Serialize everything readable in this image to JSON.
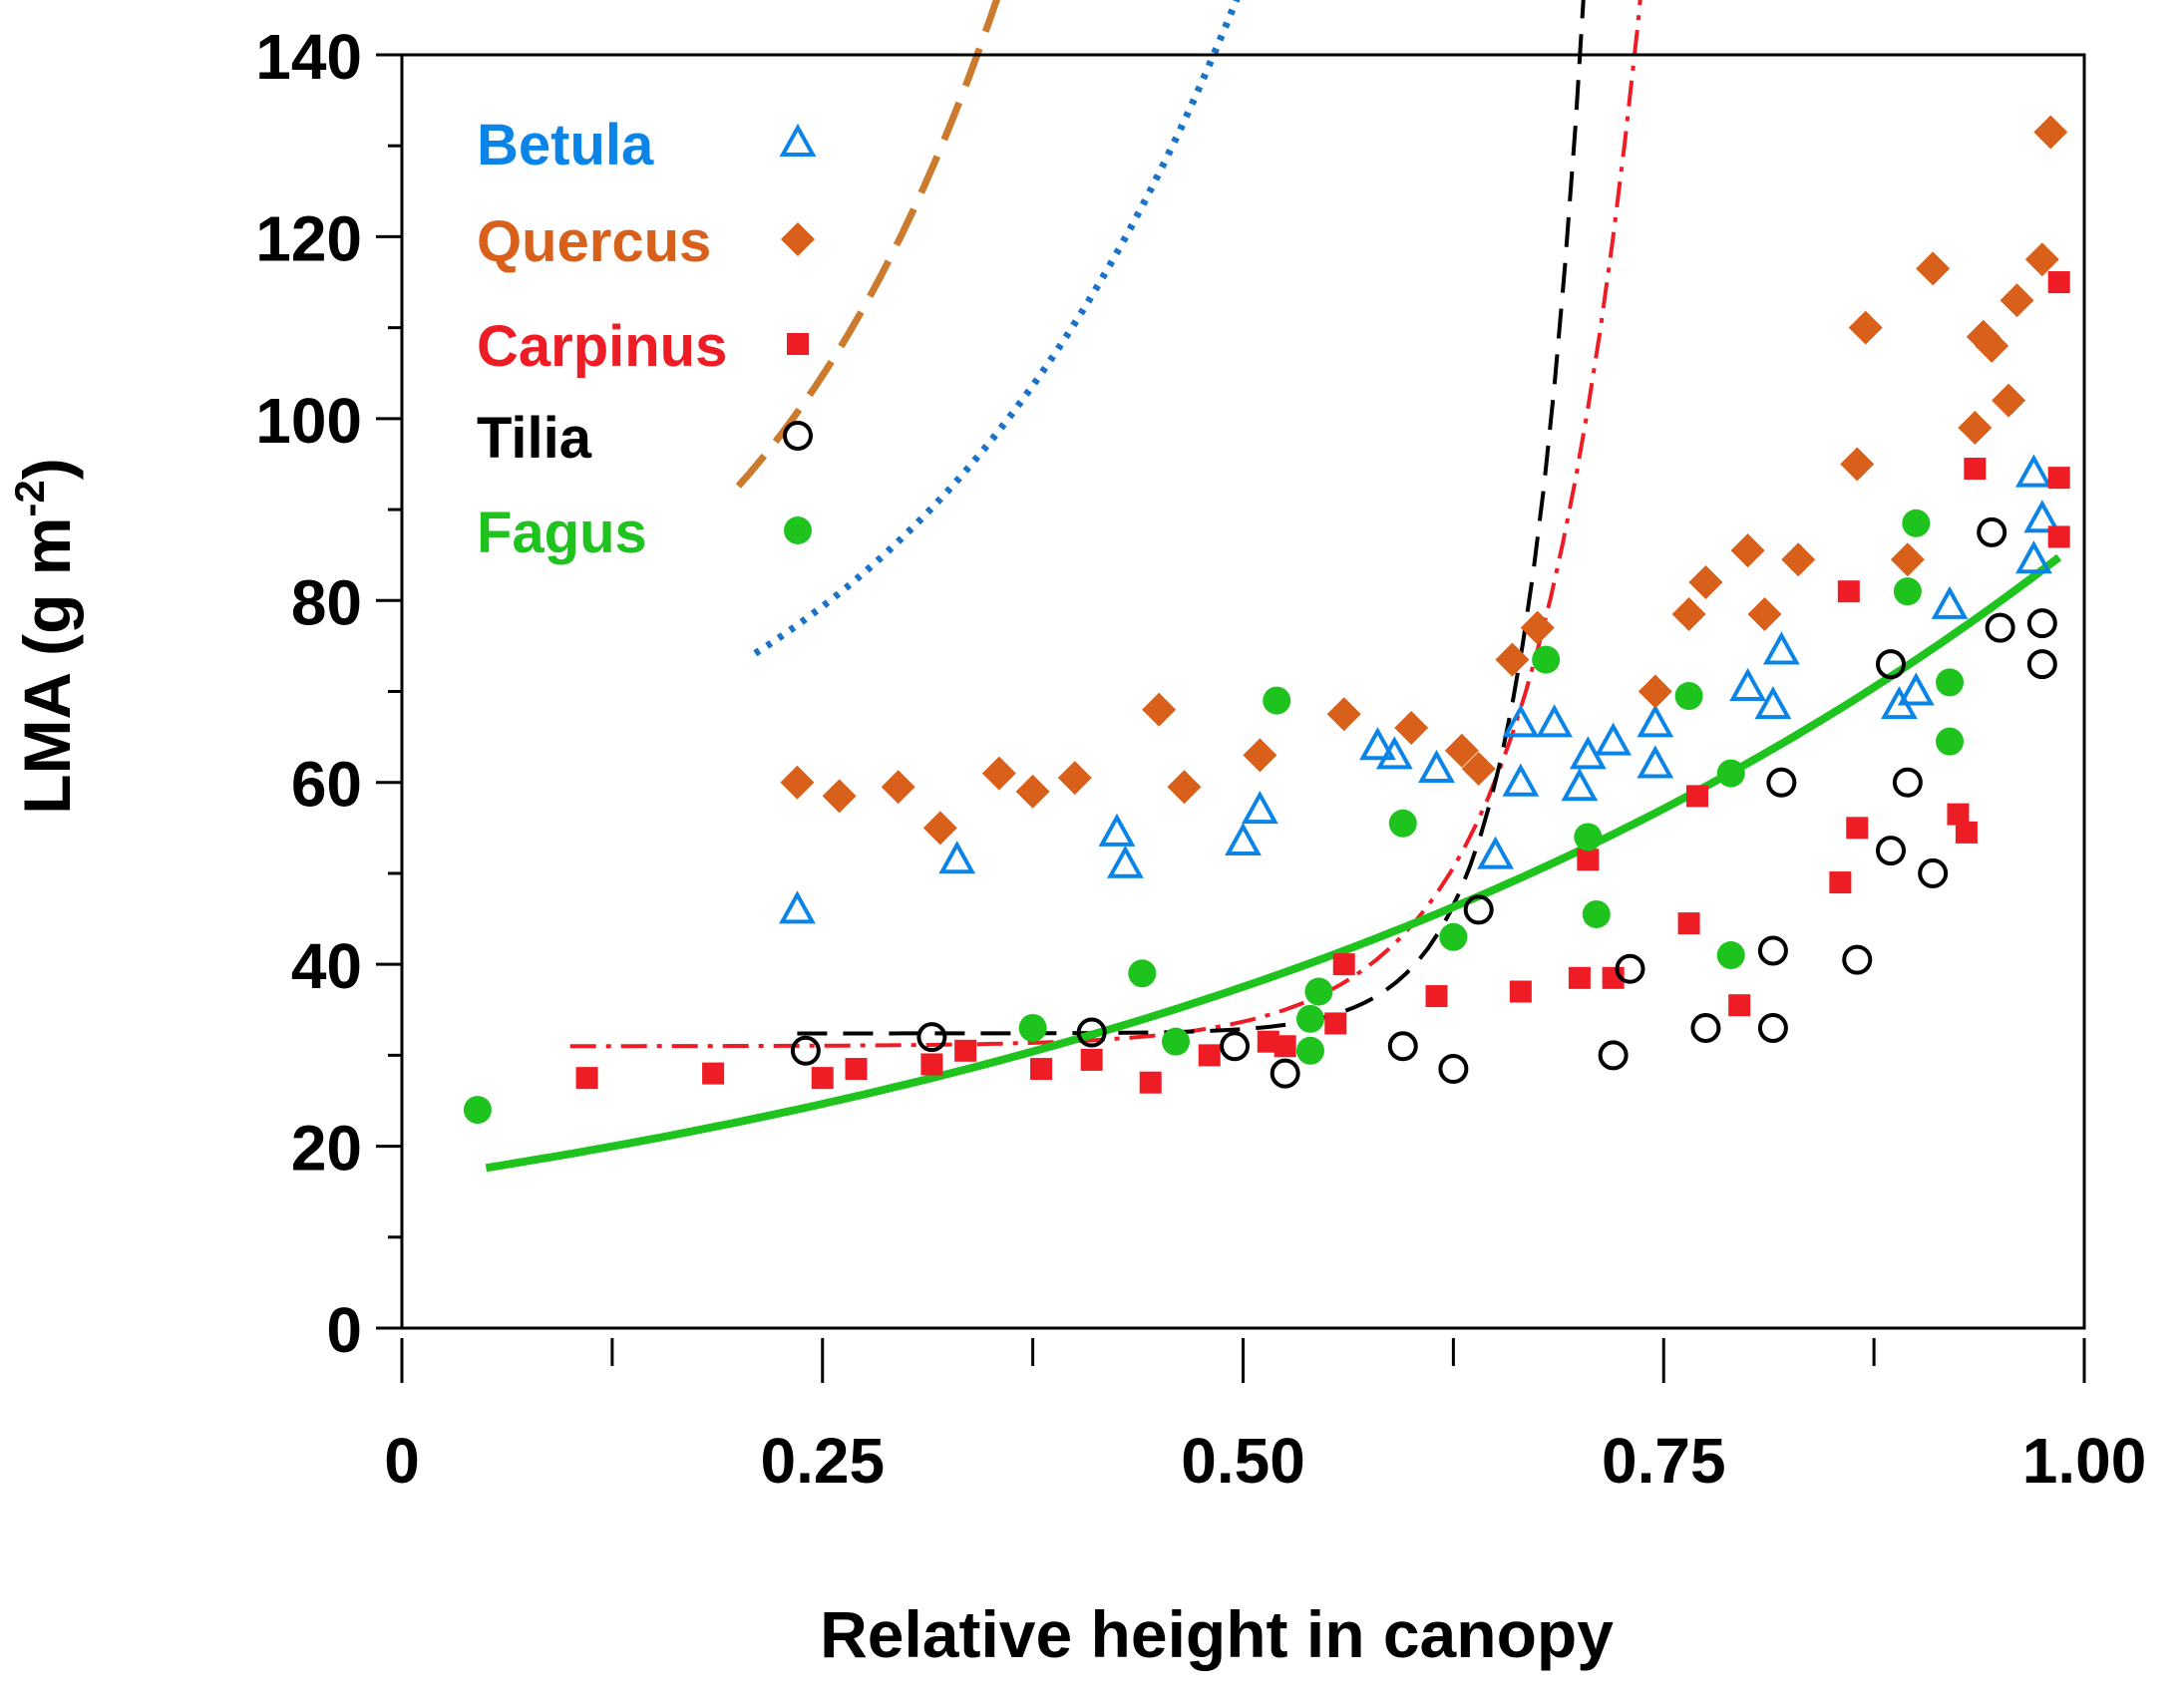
{
  "chart_data": {
    "type": "scatter",
    "title": "",
    "xlabel": "Relative height in canopy",
    "ylabel_main": "LMA (g m",
    "ylabel_sup": "-2",
    "ylabel_close": ")",
    "xlim": [
      0,
      1.0
    ],
    "ylim": [
      0,
      140
    ],
    "x_major_ticks": [
      0,
      0.25,
      0.5,
      0.75,
      1.0
    ],
    "x_tick_labels": [
      "0",
      "0.25",
      "0.50",
      "0.75",
      "1.00"
    ],
    "x_minor_ticks": [
      0.125,
      0.375,
      0.625,
      0.875
    ],
    "y_major_ticks": [
      0,
      20,
      40,
      60,
      80,
      100,
      120,
      140
    ],
    "y_tick_labels": [
      "0",
      "20",
      "40",
      "60",
      "80",
      "100",
      "120",
      "140"
    ],
    "y_minor_ticks": [
      10,
      30,
      50,
      70,
      90,
      110,
      130
    ],
    "legend_position": "top-left",
    "series": [
      {
        "name": "Betula",
        "color": "#0a84e6",
        "marker": "open-triangle",
        "points": [
          [
            0.235,
            46
          ],
          [
            0.33,
            51.5
          ],
          [
            0.425,
            54.5
          ],
          [
            0.43,
            51
          ],
          [
            0.5,
            53.5
          ],
          [
            0.51,
            57
          ],
          [
            0.58,
            64
          ],
          [
            0.59,
            63
          ],
          [
            0.615,
            61.5
          ],
          [
            0.65,
            52
          ],
          [
            0.665,
            66.5
          ],
          [
            0.665,
            60
          ],
          [
            0.685,
            66.5
          ],
          [
            0.7,
            59.5
          ],
          [
            0.705,
            63
          ],
          [
            0.72,
            64.5
          ],
          [
            0.745,
            62
          ],
          [
            0.745,
            66.5
          ],
          [
            0.8,
            70.5
          ],
          [
            0.815,
            68.5
          ],
          [
            0.82,
            74.5
          ],
          [
            0.89,
            68.5
          ],
          [
            0.9,
            70
          ],
          [
            0.92,
            79.5
          ],
          [
            0.97,
            94
          ],
          [
            0.97,
            84.5
          ],
          [
            0.975,
            89
          ]
        ]
      },
      {
        "name": "Quercus",
        "color": "#d9601a",
        "marker": "filled-diamond",
        "points": [
          [
            0.235,
            60
          ],
          [
            0.26,
            58.5
          ],
          [
            0.295,
            59.5
          ],
          [
            0.32,
            55
          ],
          [
            0.355,
            61
          ],
          [
            0.375,
            59
          ],
          [
            0.4,
            60.5
          ],
          [
            0.45,
            68
          ],
          [
            0.465,
            59.5
          ],
          [
            0.51,
            63
          ],
          [
            0.56,
            67.5
          ],
          [
            0.6,
            66
          ],
          [
            0.63,
            63.5
          ],
          [
            0.64,
            61.5
          ],
          [
            0.66,
            73.5
          ],
          [
            0.675,
            77
          ],
          [
            0.745,
            70
          ],
          [
            0.765,
            78.5
          ],
          [
            0.775,
            82
          ],
          [
            0.8,
            85.5
          ],
          [
            0.81,
            78.5
          ],
          [
            0.83,
            84.5
          ],
          [
            0.865,
            95
          ],
          [
            0.87,
            110
          ],
          [
            0.895,
            84.5
          ],
          [
            0.91,
            116.5
          ],
          [
            0.935,
            99
          ],
          [
            0.94,
            109
          ],
          [
            0.945,
            108
          ],
          [
            0.955,
            102
          ],
          [
            0.96,
            113
          ],
          [
            0.975,
            117.5
          ],
          [
            0.98,
            131.5
          ]
        ]
      },
      {
        "name": "Carpinus",
        "color": "#ee1c24",
        "marker": "filled-square",
        "points": [
          [
            0.11,
            27.5
          ],
          [
            0.185,
            28
          ],
          [
            0.25,
            27.5
          ],
          [
            0.27,
            28.5
          ],
          [
            0.315,
            29
          ],
          [
            0.335,
            30.5
          ],
          [
            0.38,
            28.5
          ],
          [
            0.41,
            29.5
          ],
          [
            0.445,
            27
          ],
          [
            0.48,
            30
          ],
          [
            0.515,
            31.5
          ],
          [
            0.525,
            31
          ],
          [
            0.555,
            33.5
          ],
          [
            0.56,
            40
          ],
          [
            0.615,
            36.5
          ],
          [
            0.665,
            37
          ],
          [
            0.7,
            38.5
          ],
          [
            0.705,
            51.5
          ],
          [
            0.72,
            38.5
          ],
          [
            0.765,
            44.5
          ],
          [
            0.77,
            58.5
          ],
          [
            0.795,
            35.5
          ],
          [
            0.855,
            49
          ],
          [
            0.86,
            81
          ],
          [
            0.865,
            55
          ],
          [
            0.925,
            56.5
          ],
          [
            0.93,
            54.5
          ],
          [
            0.935,
            94.5
          ],
          [
            0.985,
            93.5
          ],
          [
            0.985,
            87
          ],
          [
            0.985,
            115
          ]
        ]
      },
      {
        "name": "Tilia",
        "color": "#000000",
        "marker": "open-circle",
        "points": [
          [
            0.24,
            30.5
          ],
          [
            0.315,
            32
          ],
          [
            0.41,
            32.5
          ],
          [
            0.495,
            31
          ],
          [
            0.525,
            28
          ],
          [
            0.595,
            31
          ],
          [
            0.625,
            28.5
          ],
          [
            0.64,
            46
          ],
          [
            0.72,
            30
          ],
          [
            0.73,
            39.5
          ],
          [
            0.775,
            33
          ],
          [
            0.815,
            41.5
          ],
          [
            0.815,
            33
          ],
          [
            0.82,
            60
          ],
          [
            0.865,
            40.5
          ],
          [
            0.885,
            73
          ],
          [
            0.885,
            52.5
          ],
          [
            0.895,
            60
          ],
          [
            0.91,
            50
          ],
          [
            0.945,
            87.5
          ],
          [
            0.95,
            77
          ],
          [
            0.975,
            77.5
          ],
          [
            0.975,
            73
          ]
        ]
      },
      {
        "name": "Fagus",
        "color": "#1ec31e",
        "marker": "filled-circle",
        "points": [
          [
            0.045,
            24
          ],
          [
            0.375,
            33
          ],
          [
            0.44,
            39
          ],
          [
            0.46,
            31.5
          ],
          [
            0.52,
            69
          ],
          [
            0.54,
            30.5
          ],
          [
            0.54,
            34
          ],
          [
            0.545,
            37
          ],
          [
            0.595,
            55.5
          ],
          [
            0.625,
            43
          ],
          [
            0.68,
            73.5
          ],
          [
            0.705,
            54
          ],
          [
            0.71,
            45.5
          ],
          [
            0.765,
            69.5
          ],
          [
            0.79,
            61
          ],
          [
            0.79,
            41
          ],
          [
            0.895,
            81
          ],
          [
            0.9,
            88.5
          ],
          [
            0.92,
            71
          ],
          [
            0.92,
            64.5
          ]
        ]
      }
    ],
    "fits": [
      {
        "name": "Betula fit",
        "color": "#1a73c9",
        "style": "dotted",
        "x_start": 0.21,
        "x_end": 0.975,
        "a": 49.8,
        "b": 8.9,
        "c": 4.8
      },
      {
        "name": "Quercus fit",
        "color": "#cc7a2e",
        "style": "dashed",
        "x_start": 0.2,
        "x_end": 0.98,
        "a": 59.8,
        "b": 9.3,
        "c": 6.3
      },
      {
        "name": "Carpinus fit",
        "color": "#ee1c24",
        "style": "dash-dot",
        "x_start": 0.1,
        "x_end": 0.985,
        "a": 31.0,
        "b": 0.00095,
        "c": 15.9
      },
      {
        "name": "Tilia fit",
        "color": "#000000",
        "style": "long-dash",
        "x_start": 0.235,
        "x_end": 0.985,
        "a": 32.4,
        "b": 6.6e-07,
        "c": 27.0
      },
      {
        "name": "Fagus fit",
        "color": "#1ec31e",
        "style": "solid",
        "x_start": 0.05,
        "x_end": 0.985,
        "a": 0.0,
        "b": 16.2,
        "c": 1.68
      }
    ]
  }
}
